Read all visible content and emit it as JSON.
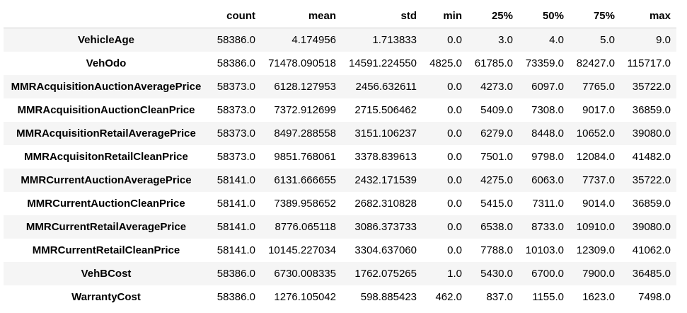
{
  "table": {
    "index_header": "",
    "columns": [
      "count",
      "mean",
      "std",
      "min",
      "25%",
      "50%",
      "75%",
      "max"
    ],
    "rows": [
      {
        "label": "VehicleAge",
        "values": [
          "58386.0",
          "4.174956",
          "1.713833",
          "0.0",
          "3.0",
          "4.0",
          "5.0",
          "9.0"
        ]
      },
      {
        "label": "VehOdo",
        "values": [
          "58386.0",
          "71478.090518",
          "14591.224550",
          "4825.0",
          "61785.0",
          "73359.0",
          "82427.0",
          "115717.0"
        ]
      },
      {
        "label": "MMRAcquisitionAuctionAveragePrice",
        "values": [
          "58373.0",
          "6128.127953",
          "2456.632611",
          "0.0",
          "4273.0",
          "6097.0",
          "7765.0",
          "35722.0"
        ]
      },
      {
        "label": "MMRAcquisitionAuctionCleanPrice",
        "values": [
          "58373.0",
          "7372.912699",
          "2715.506462",
          "0.0",
          "5409.0",
          "7308.0",
          "9017.0",
          "36859.0"
        ]
      },
      {
        "label": "MMRAcquisitionRetailAveragePrice",
        "values": [
          "58373.0",
          "8497.288558",
          "3151.106237",
          "0.0",
          "6279.0",
          "8448.0",
          "10652.0",
          "39080.0"
        ]
      },
      {
        "label": "MMRAcquisitonRetailCleanPrice",
        "values": [
          "58373.0",
          "9851.768061",
          "3378.839613",
          "0.0",
          "7501.0",
          "9798.0",
          "12084.0",
          "41482.0"
        ]
      },
      {
        "label": "MMRCurrentAuctionAveragePrice",
        "values": [
          "58141.0",
          "6131.666655",
          "2432.171539",
          "0.0",
          "4275.0",
          "6063.0",
          "7737.0",
          "35722.0"
        ]
      },
      {
        "label": "MMRCurrentAuctionCleanPrice",
        "values": [
          "58141.0",
          "7389.958652",
          "2682.310828",
          "0.0",
          "5415.0",
          "7311.0",
          "9014.0",
          "36859.0"
        ]
      },
      {
        "label": "MMRCurrentRetailAveragePrice",
        "values": [
          "58141.0",
          "8776.065118",
          "3086.373733",
          "0.0",
          "6538.0",
          "8733.0",
          "10910.0",
          "39080.0"
        ]
      },
      {
        "label": "MMRCurrentRetailCleanPrice",
        "values": [
          "58141.0",
          "10145.227034",
          "3304.637060",
          "0.0",
          "7788.0",
          "10103.0",
          "12309.0",
          "41062.0"
        ]
      },
      {
        "label": "VehBCost",
        "values": [
          "58386.0",
          "6730.008335",
          "1762.075265",
          "1.0",
          "5430.0",
          "6700.0",
          "7900.0",
          "36485.0"
        ]
      },
      {
        "label": "WarrantyCost",
        "values": [
          "58386.0",
          "1276.105042",
          "598.885423",
          "462.0",
          "837.0",
          "1155.0",
          "1623.0",
          "7498.0"
        ]
      }
    ]
  }
}
